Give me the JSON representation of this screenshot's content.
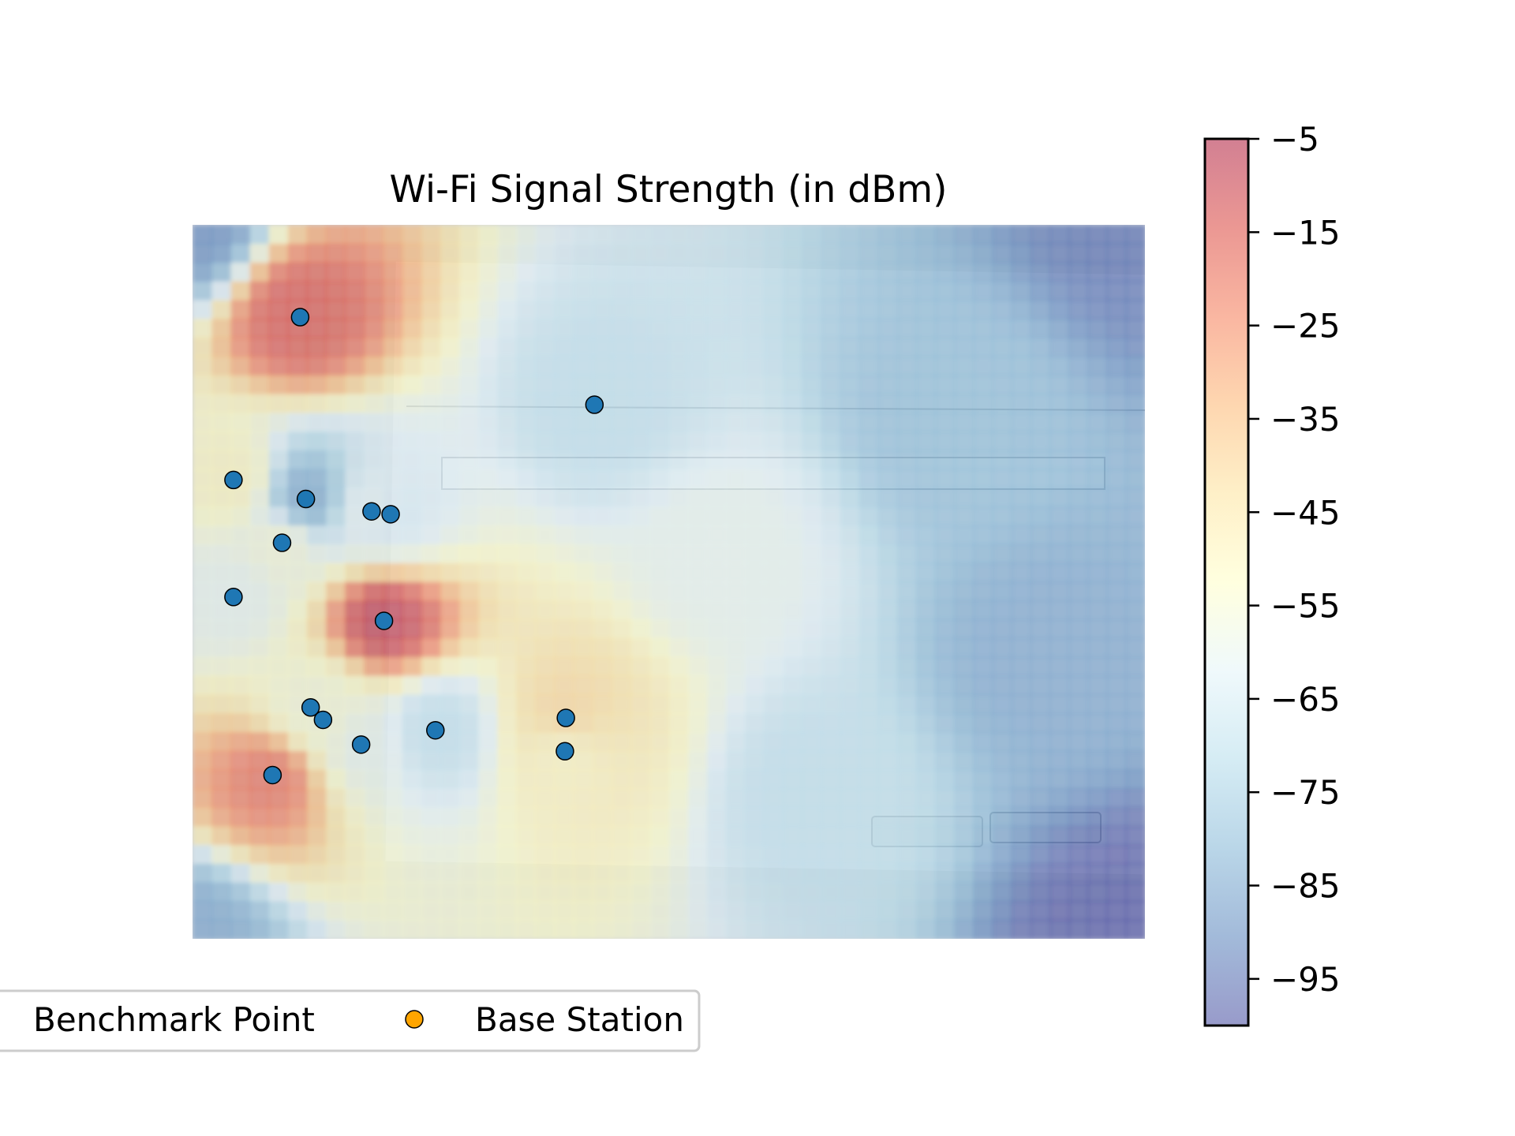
{
  "chart_data": {
    "type": "heatmap",
    "title": "Wi-Fi Signal Strength (in dBm)",
    "xlabel": "",
    "ylabel": "",
    "xlim": [
      0,
      100
    ],
    "ylim": [
      0,
      75
    ],
    "colorbar": {
      "range": [
        -100,
        -5
      ],
      "ticks": [
        -5,
        -15,
        -25,
        -35,
        -45,
        -55,
        -65,
        -75,
        -85,
        -95
      ],
      "tick_labels": [
        "−5",
        "−15",
        "−25",
        "−35",
        "−45",
        "−55",
        "−65",
        "−75",
        "−85",
        "−95"
      ],
      "colormap": "RdYlBu_r (semi-transparent)",
      "colors": [
        "#313695",
        "#4575b4",
        "#74add1",
        "#abd9e9",
        "#e0f3f8",
        "#ffffbf",
        "#fee090",
        "#fdae61",
        "#f46d43",
        "#d73027",
        "#a50026"
      ]
    },
    "grid": false,
    "background_image": "photo of a monitor showing Cygwin Setup - Select Local Package Directory dialog",
    "series": [
      {
        "name": "Benchmark Point",
        "marker": "circle",
        "color": "#1f77b4",
        "points": [
          {
            "x": 11.3,
            "y": 65.3,
            "signal": -15
          },
          {
            "x": 42.2,
            "y": 56.1,
            "signal": -70
          },
          {
            "x": 4.3,
            "y": 48.2,
            "signal": -50
          },
          {
            "x": 11.9,
            "y": 46.2,
            "signal": -85
          },
          {
            "x": 18.8,
            "y": 44.9,
            "signal": -60
          },
          {
            "x": 20.8,
            "y": 44.6,
            "signal": -65
          },
          {
            "x": 9.4,
            "y": 41.6,
            "signal": -55
          },
          {
            "x": 4.3,
            "y": 35.9,
            "signal": -60
          },
          {
            "x": 20.1,
            "y": 33.4,
            "signal": -8
          },
          {
            "x": 12.4,
            "y": 24.3,
            "signal": -55
          },
          {
            "x": 13.7,
            "y": 23.0,
            "signal": -55
          },
          {
            "x": 39.2,
            "y": 23.2,
            "signal": -40
          },
          {
            "x": 25.5,
            "y": 21.9,
            "signal": -70
          },
          {
            "x": 17.7,
            "y": 20.4,
            "signal": -60
          },
          {
            "x": 39.1,
            "y": 19.7,
            "signal": -50
          },
          {
            "x": 8.4,
            "y": 17.2,
            "signal": -20
          }
        ]
      },
      {
        "name": "Base Station",
        "marker": "circle",
        "color": "#ffa500",
        "points": []
      }
    ],
    "heatmap_extra_sources": [
      {
        "x": 0,
        "y": 75,
        "signal": -90
      },
      {
        "x": 100,
        "y": 75,
        "signal": -95
      },
      {
        "x": 0,
        "y": 0,
        "signal": -85
      },
      {
        "x": 100,
        "y": 0,
        "signal": -100
      },
      {
        "x": 80,
        "y": 55,
        "signal": -80
      },
      {
        "x": 55,
        "y": 40,
        "signal": -60
      },
      {
        "x": 65,
        "y": 15,
        "signal": -70
      },
      {
        "x": 90,
        "y": 30,
        "signal": -85
      }
    ],
    "legend": {
      "placement": "bottom-left",
      "entries": [
        {
          "label": "Benchmark Point",
          "color": "#1f77b4"
        },
        {
          "label": "Base Station",
          "color": "#ffa500"
        }
      ]
    }
  }
}
